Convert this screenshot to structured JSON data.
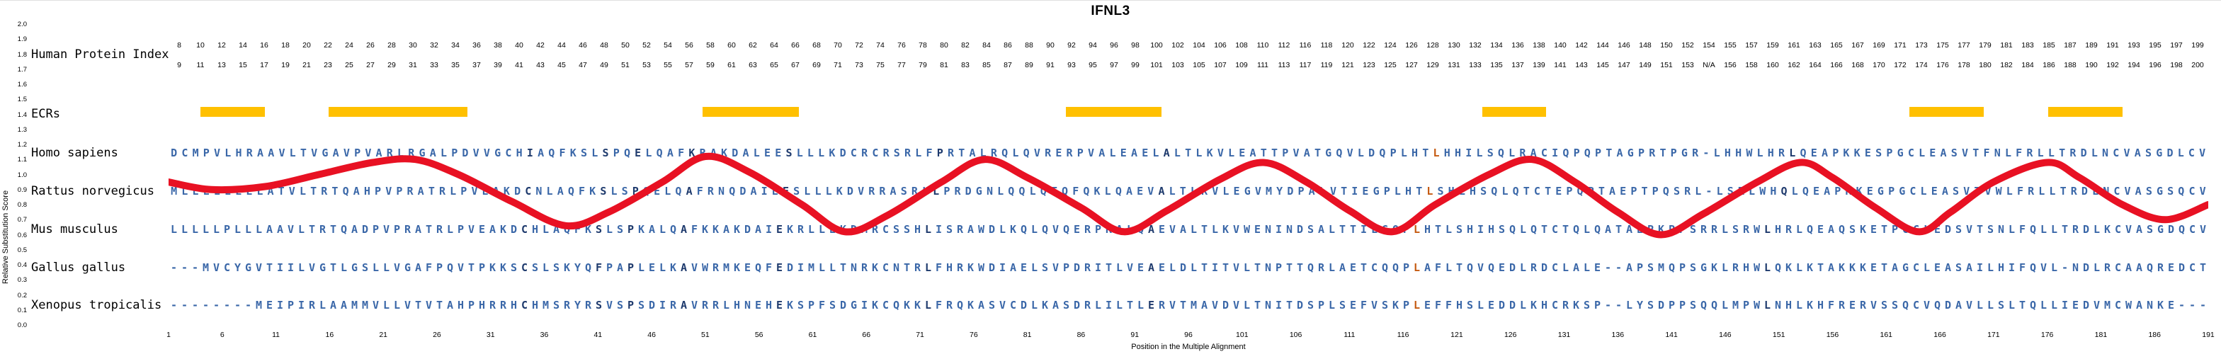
{
  "title": "IFNL3",
  "colors": {
    "sequence_blue": "#3a67a8",
    "conserved_navy": "#1e3a6d",
    "conserved_orange": "#c55a11",
    "ecr_yellow": "#FFC000",
    "curve_red": "#e81123",
    "text": "#000000"
  },
  "header_row": {
    "label": "Human Protein Index",
    "top_numbers": "8 10 12 14 16 18 20 22 24 26 28 30 32 34 36 38 40 42 44 46 48 50 52 54 56 58 60 62 64 66 68 70 72 74 76 78 80 82 84 86 88 90 92 94 96 98 100 102 104 106 108 110 112 116 118 120 122 124 126 128 130 132 134 136 138 140 142 144 146 148 150 152 154 155 157 159 161 163 165 167 169 171 173 175 177 179 181 183 185 187 189 191 193 195 197 199",
    "bottom_numbers": "9 11 13 15 17 19 21 23 25 27 29 31 33 35 37 39 41 43 45 47 49 51 53 55 57 59 61 63 65 67 69 71 73 75 77 79 81 83 85 87 89 91 93 95 97 99 101 103 105 107 109 111 113 117 119 121 123 125 127 129 131 133 135 137 139 141 143 145 147 149 151 153 N/A 156 158 160 162 164 166 168 170 172 174 176 178 180 182 184 186 188 190 192 194 196 198 200"
  },
  "ecr_row": {
    "label": "ECRs",
    "regions": [
      [
        4,
        9
      ],
      [
        16,
        28
      ],
      [
        51,
        59
      ],
      [
        85,
        93
      ],
      [
        124,
        129
      ],
      [
        164,
        170
      ],
      [
        177,
        183
      ]
    ]
  },
  "species_rows": [
    {
      "name": "Homo sapiens",
      "sequence": "DCMPVLHRAAVLTVGAVPVARLRGALPDVVGCHIAQFKSLSPQELQAFKRAKDALEESLLLKDCRCRSRLFPRTALRQLQVRERPVALEAELALTLKVLEATTPVATGQVLDQPLHTLHHILSQLRACIQPQPTAGPRTPGR-LHHWLHRLQEAPKKESPGCLEASVTFNLFRLLTRDLNCVASGDLCV"
    },
    {
      "name": "Rattus norvegicus",
      "sequence": "MLLLLLLLLATVLTRTQAHPVPRATRLPVEAKDCNLAQFKSLSPQELQAFRNQDAIEESLLLKDVRRASRLLPRDGNLQQLQTQFQKLQAEVALTLKVLEGVMYDPALVTIEGPLHTLSHLHSQLQTCTEPQPTAEPTPQSRL-LSRLWHQLQEAPKKEGPGCLEASVTVWLFRLLTRDLNCVASGSQCV"
    },
    {
      "name": "Mus musculus",
      "sequence": "LLLLLPLLLAAVLTRTQADPVPRATRLPVEAKDCHLAQFKSLSPKALQAFKKAKDAIEKRLLEKDMRCSSHLISRAWDLKQLQVQERPKALQAEVALTLKVWENINDSALTTILGQPLHTLSHIHSQLQTCTQLQATAEPKPPSRRLSRWLHRLQEAQSKETPGCLEDSVTSNLFQLLTRDLKCVASGDQCV"
    },
    {
      "name": "Gallus gallus",
      "sequence": "---MVCYGVTIILVGTLGSLLVGAFPQVTPKKSCSLSKYQFPAPLELKAVWRMKEQFEDIMLLTNRKCNTRLFHRKWDIAELSVPDRITLVEAELDLTITVLTNPTTQRLAETCQQPLAFLTQVQEDLRDCLALE--APSMQPSGKLRHWLQKLKTAKKKETAGCLEASAILHIFQVL-NDLRCAAQREDCT"
    },
    {
      "name": "Xenopus tropicalis",
      "sequence": "--------MEIPIRLAAMMVLLVTVTAHPHRRHCHMSRYRSVSPSDIRAVRRLHNEHEKSPFSDGIKCQKKLFRQKASVCDLKASDRLILTLERVTMAVDVLTNITDSPLSEFVSKPLEFFHSLEDDLKHCRKSP--LYSDPPSQQLMPWLNHLKHFRERVSSQCVQDAVLLSLTQLLIEDVMCWANKE---"
    }
  ],
  "chart_data": {
    "type": "line",
    "title": "IFNL3",
    "xlabel": "Position in the Multiple Alignment",
    "ylabel": "Relative Substitution Score",
    "xlim": [
      1,
      191
    ],
    "ylim": [
      0.0,
      2.0
    ],
    "grid": false,
    "legend": "none",
    "y_ticks": [
      "2.0",
      "1.9",
      "1.8",
      "1.7",
      "1.6",
      "1.5",
      "1.4",
      "1.3",
      "1.2",
      "1.1",
      "1.0",
      "0.9",
      "0.8",
      "0.7",
      "0.6",
      "0.5",
      "0.4",
      "0.3",
      "0.2",
      "0.1",
      "0.0"
    ],
    "x_ticks": [
      1,
      6,
      11,
      16,
      21,
      26,
      31,
      36,
      41,
      46,
      51,
      56,
      61,
      66,
      71,
      76,
      81,
      86,
      91,
      96,
      101,
      106,
      111,
      116,
      121,
      126,
      131,
      136,
      141,
      146,
      151,
      156,
      161,
      166,
      171,
      176,
      181,
      186,
      191
    ],
    "ecr_regions_alignment_positions": [
      [
        4,
        9
      ],
      [
        16,
        28
      ],
      [
        51,
        59
      ],
      [
        85,
        93
      ],
      [
        124,
        129
      ],
      [
        164,
        170
      ],
      [
        177,
        183
      ]
    ],
    "series": [
      {
        "name": "Relative Substitution Score",
        "style": "thick red smoothed curve overlaid on alignment",
        "points": [
          [
            1,
            0.95
          ],
          [
            5,
            0.9
          ],
          [
            10,
            0.92
          ],
          [
            15,
            1.0
          ],
          [
            20,
            1.08
          ],
          [
            24,
            1.1
          ],
          [
            28,
            1.0
          ],
          [
            33,
            0.82
          ],
          [
            38,
            0.66
          ],
          [
            42,
            0.75
          ],
          [
            47,
            0.95
          ],
          [
            51,
            1.12
          ],
          [
            55,
            1.02
          ],
          [
            60,
            0.8
          ],
          [
            64,
            0.62
          ],
          [
            68,
            0.73
          ],
          [
            73,
            0.95
          ],
          [
            77,
            1.1
          ],
          [
            81,
            0.98
          ],
          [
            86,
            0.78
          ],
          [
            90,
            0.62
          ],
          [
            94,
            0.76
          ],
          [
            99,
            0.97
          ],
          [
            103,
            1.08
          ],
          [
            107,
            0.95
          ],
          [
            111,
            0.76
          ],
          [
            115,
            0.62
          ],
          [
            119,
            0.8
          ],
          [
            124,
            1.0
          ],
          [
            128,
            1.1
          ],
          [
            132,
            0.95
          ],
          [
            136,
            0.75
          ],
          [
            140,
            0.6
          ],
          [
            144,
            0.74
          ],
          [
            149,
            0.95
          ],
          [
            153,
            1.08
          ],
          [
            156,
            0.98
          ],
          [
            160,
            0.78
          ],
          [
            164,
            0.62
          ],
          [
            167,
            0.75
          ],
          [
            171,
            0.95
          ],
          [
            176,
            1.08
          ],
          [
            179,
            0.98
          ],
          [
            183,
            0.8
          ],
          [
            187,
            0.7
          ],
          [
            191,
            0.8
          ]
        ]
      }
    ]
  }
}
